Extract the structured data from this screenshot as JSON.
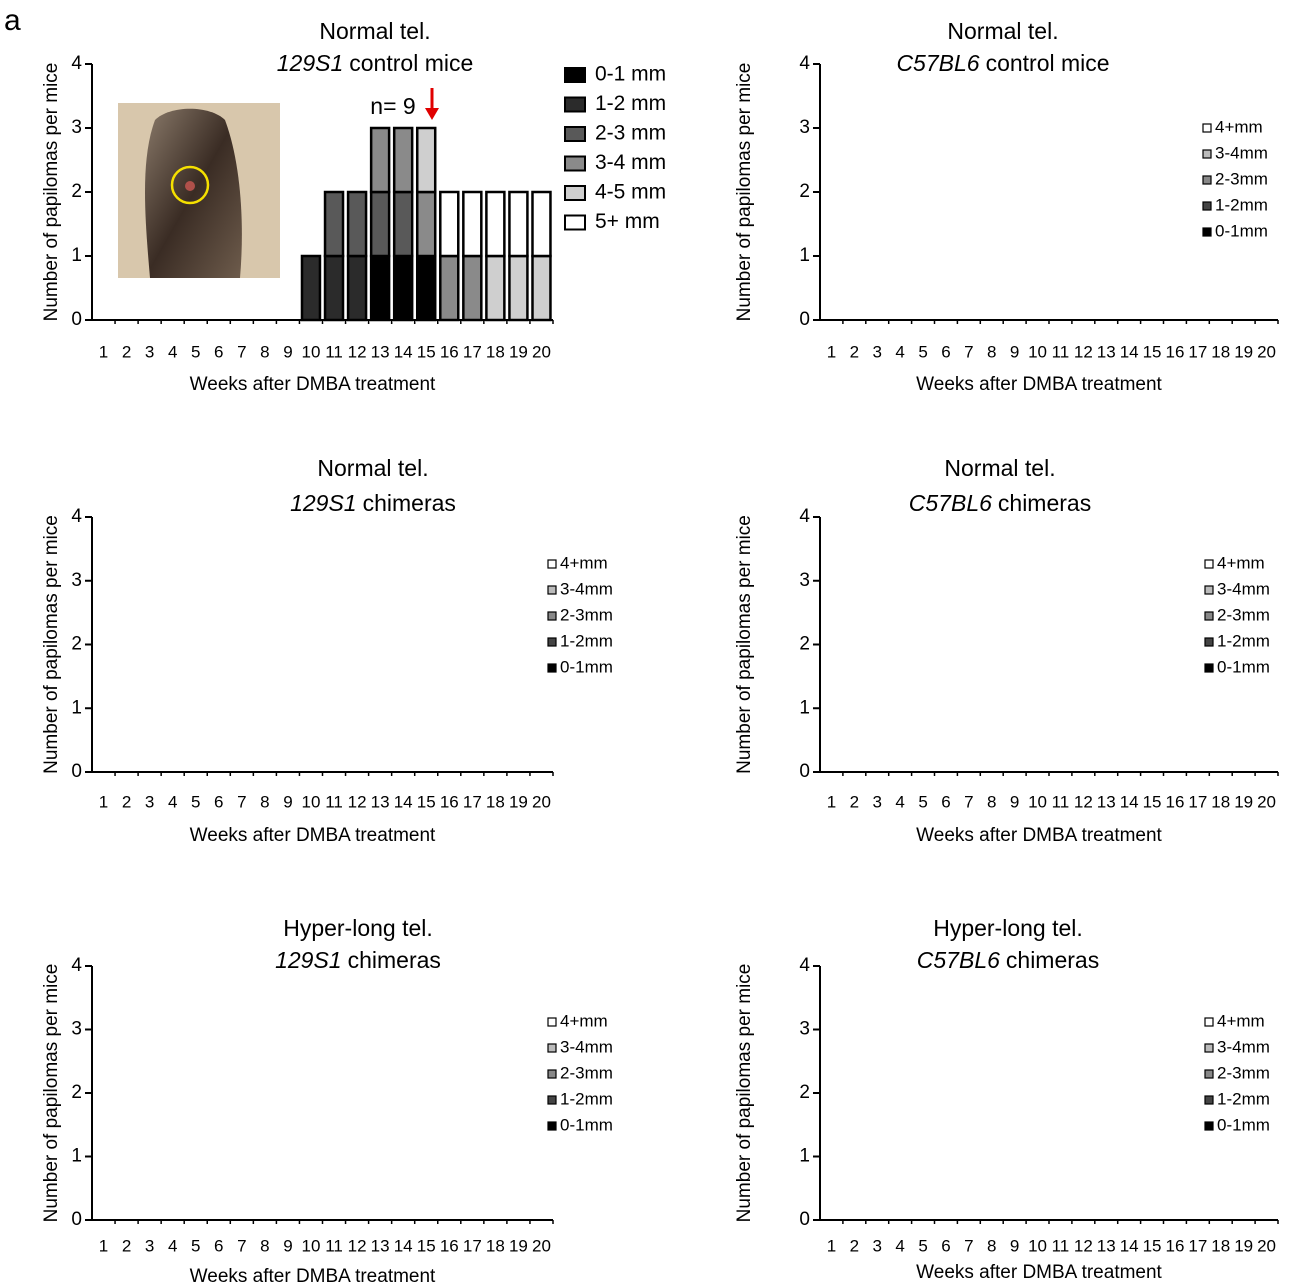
{
  "panel_label": "a",
  "chart_data": [
    {
      "type": "bar",
      "stacked": true,
      "title": "Normal tel.",
      "strain": "129S1",
      "subtitle": "control mice",
      "annotation": "n= 9",
      "x_label": "Weeks after DMBA treatment",
      "y_label": "Number of papilomas per mice",
      "categories": [
        "1",
        "2",
        "3",
        "4",
        "5",
        "6",
        "7",
        "8",
        "9",
        "10",
        "11",
        "12",
        "13",
        "14",
        "15",
        "16",
        "17",
        "18",
        "19",
        "20"
      ],
      "ylim": [
        0,
        4
      ],
      "yticks": [
        0,
        1,
        2,
        3,
        4
      ],
      "series": [
        {
          "name": "0-1 mm",
          "color": "#000000",
          "values": [
            0,
            0,
            0,
            0,
            0,
            0,
            0,
            0,
            0,
            0,
            0,
            0,
            1,
            1,
            1,
            0,
            0,
            0,
            0,
            0
          ]
        },
        {
          "name": "1-2 mm",
          "color": "#2b2b2b",
          "values": [
            0,
            0,
            0,
            0,
            0,
            0,
            0,
            0,
            0,
            1,
            1,
            1,
            0,
            0,
            0,
            0,
            0,
            0,
            0,
            0
          ]
        },
        {
          "name": "2-3 mm",
          "color": "#595959",
          "values": [
            0,
            0,
            0,
            0,
            0,
            0,
            0,
            0,
            0,
            0,
            1,
            1,
            1,
            1,
            0,
            0,
            0,
            0,
            0,
            0
          ]
        },
        {
          "name": "3-4 mm",
          "color": "#8a8a8a",
          "values": [
            0,
            0,
            0,
            0,
            0,
            0,
            0,
            0,
            0,
            0,
            0,
            0,
            1,
            1,
            1,
            1,
            1,
            0,
            0,
            0
          ]
        },
        {
          "name": "4-5 mm",
          "color": "#cfcfcf",
          "values": [
            0,
            0,
            0,
            0,
            0,
            0,
            0,
            0,
            0,
            0,
            0,
            0,
            0,
            0,
            1,
            0,
            0,
            1,
            1,
            1
          ]
        },
        {
          "name": "5+ mm",
          "color": "#ffffff",
          "values": [
            0,
            0,
            0,
            0,
            0,
            0,
            0,
            0,
            0,
            0,
            0,
            0,
            0,
            0,
            0,
            1,
            1,
            1,
            1,
            1
          ]
        }
      ]
    },
    {
      "type": "bar",
      "stacked": true,
      "title": "Normal tel.",
      "strain": "C57BL6",
      "subtitle": "control mice",
      "x_label": "Weeks after DMBA treatment",
      "y_label": "Number of papilomas per mice",
      "categories": [
        "1",
        "2",
        "3",
        "4",
        "5",
        "6",
        "7",
        "8",
        "9",
        "10",
        "11",
        "12",
        "13",
        "14",
        "15",
        "16",
        "17",
        "18",
        "19",
        "20"
      ],
      "ylim": [
        0,
        4
      ],
      "yticks": [
        0,
        1,
        2,
        3,
        4
      ],
      "series": [
        {
          "name": "0-1mm",
          "color": "#000000",
          "values": [
            0,
            0,
            0,
            0,
            0,
            0,
            0,
            0,
            0,
            0,
            0,
            0,
            0,
            0,
            0,
            0,
            0,
            0,
            0,
            0
          ]
        },
        {
          "name": "1-2mm",
          "color": "#444444",
          "values": [
            0,
            0,
            0,
            0,
            0,
            0,
            0,
            0,
            0,
            0,
            0,
            0,
            0,
            0,
            0,
            0,
            0,
            0,
            0,
            0
          ]
        },
        {
          "name": "2-3mm",
          "color": "#888888",
          "values": [
            0,
            0,
            0,
            0,
            0,
            0,
            0,
            0,
            0,
            0,
            0,
            0,
            0,
            0,
            0,
            0,
            0,
            0,
            0,
            0
          ]
        },
        {
          "name": "3-4mm",
          "color": "#bbbbbb",
          "values": [
            0,
            0,
            0,
            0,
            0,
            0,
            0,
            0,
            0,
            0,
            0,
            0,
            0,
            0,
            0,
            0,
            0,
            0,
            0,
            0
          ]
        },
        {
          "name": "4+mm",
          "color": "#ffffff",
          "values": [
            0,
            0,
            0,
            0,
            0,
            0,
            0,
            0,
            0,
            0,
            0,
            0,
            0,
            0,
            0,
            0,
            0,
            0,
            0,
            0
          ]
        }
      ]
    },
    {
      "type": "bar",
      "stacked": true,
      "title": "Normal tel.",
      "strain": "129S1",
      "subtitle": "chimeras",
      "x_label": "Weeks after DMBA treatment",
      "y_label": "Number of papilomas per mice",
      "categories": [
        "1",
        "2",
        "3",
        "4",
        "5",
        "6",
        "7",
        "8",
        "9",
        "10",
        "11",
        "12",
        "13",
        "14",
        "15",
        "16",
        "17",
        "18",
        "19",
        "20"
      ],
      "ylim": [
        0,
        4
      ],
      "yticks": [
        0,
        1,
        2,
        3,
        4
      ],
      "series": [
        {
          "name": "0-1mm",
          "color": "#000000",
          "values": [
            0,
            0,
            0,
            0,
            0,
            0,
            0,
            0,
            0,
            0,
            0,
            0,
            0,
            0,
            0,
            0,
            0,
            0,
            0,
            0
          ]
        },
        {
          "name": "1-2mm",
          "color": "#444444",
          "values": [
            0,
            0,
            0,
            0,
            0,
            0,
            0,
            0,
            0,
            0,
            0,
            0,
            0,
            0,
            0,
            0,
            0,
            0,
            0,
            0
          ]
        },
        {
          "name": "2-3mm",
          "color": "#888888",
          "values": [
            0,
            0,
            0,
            0,
            0,
            0,
            0,
            0,
            0,
            0,
            0,
            0,
            0,
            0,
            0,
            0,
            0,
            0,
            0,
            0
          ]
        },
        {
          "name": "3-4mm",
          "color": "#bbbbbb",
          "values": [
            0,
            0,
            0,
            0,
            0,
            0,
            0,
            0,
            0,
            0,
            0,
            0,
            0,
            0,
            0,
            0,
            0,
            0,
            0,
            0
          ]
        },
        {
          "name": "4+mm",
          "color": "#ffffff",
          "values": [
            0,
            0,
            0,
            0,
            0,
            0,
            0,
            0,
            0,
            0,
            0,
            0,
            0,
            0,
            0,
            0,
            0,
            0,
            0,
            0
          ]
        }
      ]
    },
    {
      "type": "bar",
      "stacked": true,
      "title": "Normal tel.",
      "strain": "C57BL6",
      "subtitle": "chimeras",
      "x_label": "Weeks after DMBA treatment",
      "y_label": "Number of papilomas per mice",
      "categories": [
        "1",
        "2",
        "3",
        "4",
        "5",
        "6",
        "7",
        "8",
        "9",
        "10",
        "11",
        "12",
        "13",
        "14",
        "15",
        "16",
        "17",
        "18",
        "19",
        "20"
      ],
      "ylim": [
        0,
        4
      ],
      "yticks": [
        0,
        1,
        2,
        3,
        4
      ],
      "series": [
        {
          "name": "0-1mm",
          "color": "#000000",
          "values": [
            0,
            0,
            0,
            0,
            0,
            0,
            0,
            0,
            0,
            0,
            0,
            0,
            0,
            0,
            0,
            0,
            0,
            0,
            0,
            0
          ]
        },
        {
          "name": "1-2mm",
          "color": "#444444",
          "values": [
            0,
            0,
            0,
            0,
            0,
            0,
            0,
            0,
            0,
            0,
            0,
            0,
            0,
            0,
            0,
            0,
            0,
            0,
            0,
            0
          ]
        },
        {
          "name": "2-3mm",
          "color": "#888888",
          "values": [
            0,
            0,
            0,
            0,
            0,
            0,
            0,
            0,
            0,
            0,
            0,
            0,
            0,
            0,
            0,
            0,
            0,
            0,
            0,
            0
          ]
        },
        {
          "name": "3-4mm",
          "color": "#bbbbbb",
          "values": [
            0,
            0,
            0,
            0,
            0,
            0,
            0,
            0,
            0,
            0,
            0,
            0,
            0,
            0,
            0,
            0,
            0,
            0,
            0,
            0
          ]
        },
        {
          "name": "4+mm",
          "color": "#ffffff",
          "values": [
            0,
            0,
            0,
            0,
            0,
            0,
            0,
            0,
            0,
            0,
            0,
            0,
            0,
            0,
            0,
            0,
            0,
            0,
            0,
            0
          ]
        }
      ]
    },
    {
      "type": "bar",
      "stacked": true,
      "title": "Hyper-long tel.",
      "strain": "129S1",
      "subtitle": "chimeras",
      "x_label": "Weeks after DMBA treatment",
      "y_label": "Number of papilomas per mice",
      "categories": [
        "1",
        "2",
        "3",
        "4",
        "5",
        "6",
        "7",
        "8",
        "9",
        "10",
        "11",
        "12",
        "13",
        "14",
        "15",
        "16",
        "17",
        "18",
        "19",
        "20"
      ],
      "ylim": [
        0,
        4
      ],
      "yticks": [
        0,
        1,
        2,
        3,
        4
      ],
      "series": [
        {
          "name": "0-1mm",
          "color": "#000000",
          "values": [
            0,
            0,
            0,
            0,
            0,
            0,
            0,
            0,
            0,
            0,
            0,
            0,
            0,
            0,
            0,
            0,
            0,
            0,
            0,
            0
          ]
        },
        {
          "name": "1-2mm",
          "color": "#444444",
          "values": [
            0,
            0,
            0,
            0,
            0,
            0,
            0,
            0,
            0,
            0,
            0,
            0,
            0,
            0,
            0,
            0,
            0,
            0,
            0,
            0
          ]
        },
        {
          "name": "2-3mm",
          "color": "#888888",
          "values": [
            0,
            0,
            0,
            0,
            0,
            0,
            0,
            0,
            0,
            0,
            0,
            0,
            0,
            0,
            0,
            0,
            0,
            0,
            0,
            0
          ]
        },
        {
          "name": "3-4mm",
          "color": "#bbbbbb",
          "values": [
            0,
            0,
            0,
            0,
            0,
            0,
            0,
            0,
            0,
            0,
            0,
            0,
            0,
            0,
            0,
            0,
            0,
            0,
            0,
            0
          ]
        },
        {
          "name": "4+mm",
          "color": "#ffffff",
          "values": [
            0,
            0,
            0,
            0,
            0,
            0,
            0,
            0,
            0,
            0,
            0,
            0,
            0,
            0,
            0,
            0,
            0,
            0,
            0,
            0
          ]
        }
      ]
    },
    {
      "type": "bar",
      "stacked": true,
      "title": "Hyper-long tel.",
      "strain": "C57BL6",
      "subtitle": "chimeras",
      "x_label": "Weeks after DMBA treatment",
      "y_label": "Number of papilomas per mice",
      "categories": [
        "1",
        "2",
        "3",
        "4",
        "5",
        "6",
        "7",
        "8",
        "9",
        "10",
        "11",
        "12",
        "13",
        "14",
        "15",
        "16",
        "17",
        "18",
        "19",
        "20"
      ],
      "ylim": [
        0,
        4
      ],
      "yticks": [
        0,
        1,
        2,
        3,
        4
      ],
      "series": [
        {
          "name": "0-1mm",
          "color": "#000000",
          "values": [
            0,
            0,
            0,
            0,
            0,
            0,
            0,
            0,
            0,
            0,
            0,
            0,
            0,
            0,
            0,
            0,
            0,
            0,
            0,
            0
          ]
        },
        {
          "name": "1-2mm",
          "color": "#444444",
          "values": [
            0,
            0,
            0,
            0,
            0,
            0,
            0,
            0,
            0,
            0,
            0,
            0,
            0,
            0,
            0,
            0,
            0,
            0,
            0,
            0
          ]
        },
        {
          "name": "2-3mm",
          "color": "#888888",
          "values": [
            0,
            0,
            0,
            0,
            0,
            0,
            0,
            0,
            0,
            0,
            0,
            0,
            0,
            0,
            0,
            0,
            0,
            0,
            0,
            0
          ]
        },
        {
          "name": "3-4mm",
          "color": "#bbbbbb",
          "values": [
            0,
            0,
            0,
            0,
            0,
            0,
            0,
            0,
            0,
            0,
            0,
            0,
            0,
            0,
            0,
            0,
            0,
            0,
            0,
            0
          ]
        },
        {
          "name": "4+mm",
          "color": "#ffffff",
          "values": [
            0,
            0,
            0,
            0,
            0,
            0,
            0,
            0,
            0,
            0,
            0,
            0,
            0,
            0,
            0,
            0,
            0,
            0,
            0,
            0
          ]
        }
      ]
    }
  ]
}
